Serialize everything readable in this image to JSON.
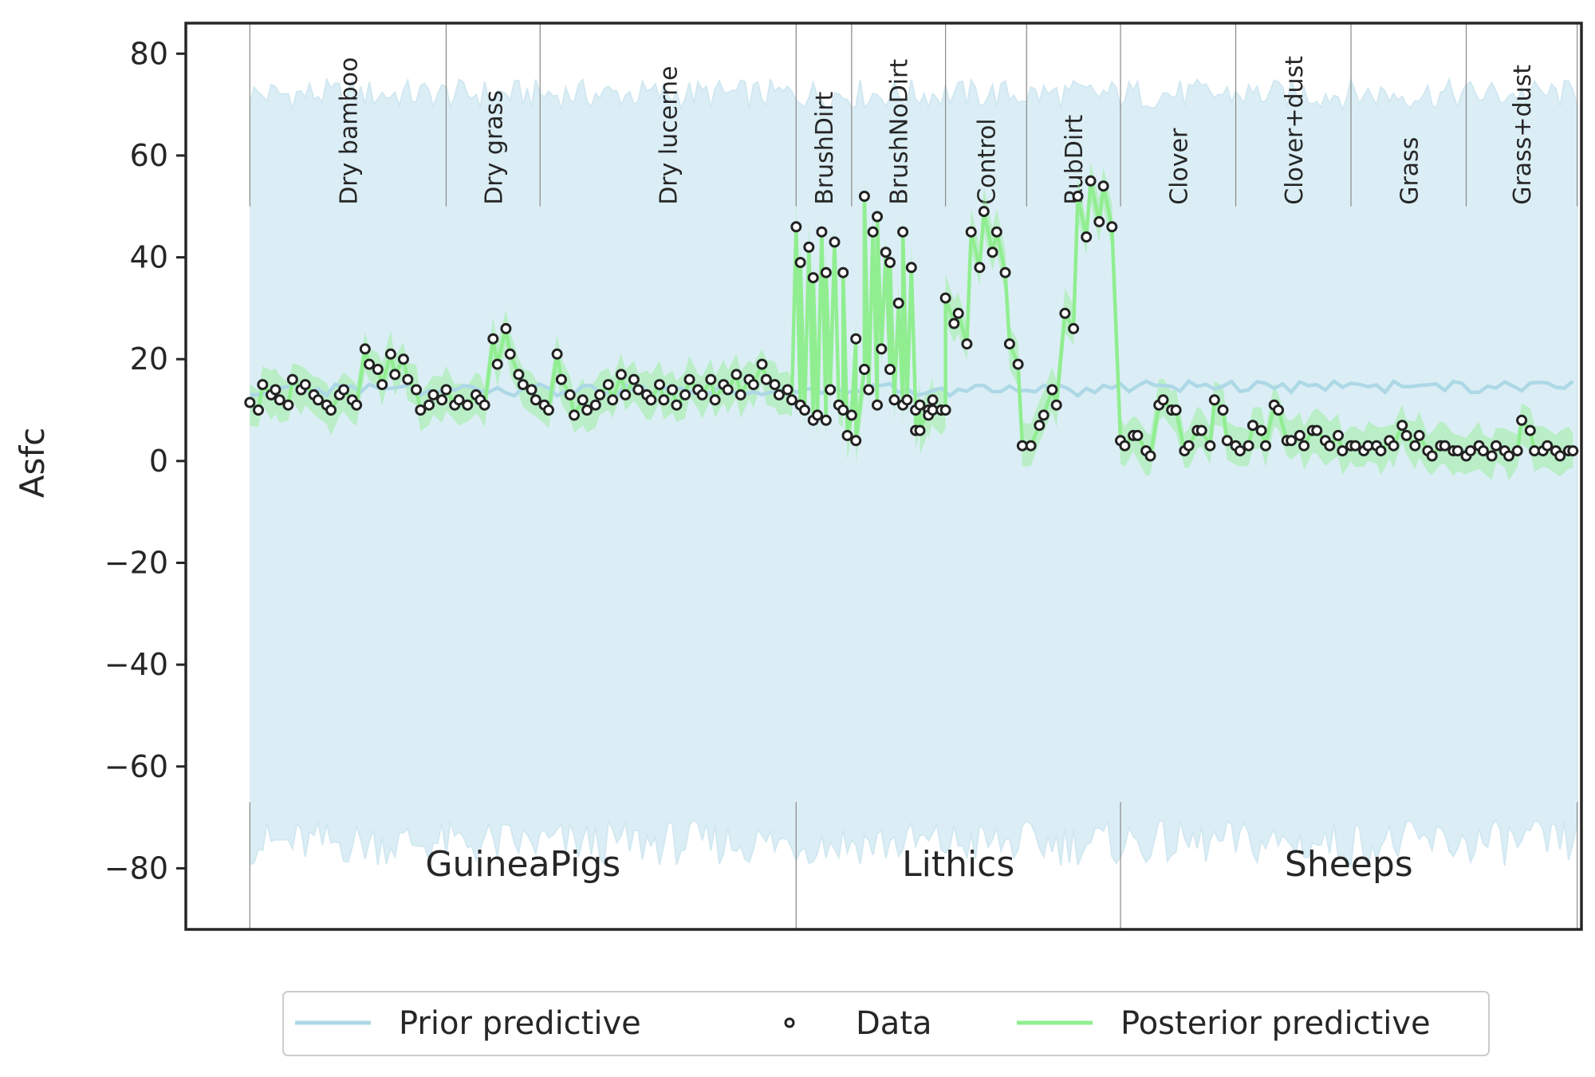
{
  "chart_data": {
    "type": "line",
    "ylabel": "Asfc",
    "xlabel": "",
    "ylim": [
      -92,
      86
    ],
    "yticks": [
      80,
      60,
      40,
      20,
      0,
      -20,
      -40,
      -60,
      -80
    ],
    "ytick_labels": [
      "80",
      "60",
      "40",
      "20",
      "0",
      "−20",
      "−40",
      "−60",
      "−80"
    ],
    "x_range": [
      -15,
      312
    ],
    "colors": {
      "prior_line": "#add8e6",
      "prior_band": "#dbeef5",
      "posterior": "#90ee90",
      "data_marker": "#222222"
    },
    "treatments": [
      {
        "name": "Dry bamboo",
        "start": 0,
        "end": 46
      },
      {
        "name": "Dry grass",
        "start": 46,
        "end": 68
      },
      {
        "name": "Dry lucerne",
        "start": 68,
        "end": 128
      },
      {
        "name": "BrushDirt",
        "start": 128,
        "end": 141
      },
      {
        "name": "BrushNoDirt",
        "start": 141,
        "end": 163
      },
      {
        "name": "Control",
        "start": 163,
        "end": 182
      },
      {
        "name": "RubDirt",
        "start": 182,
        "end": 204
      },
      {
        "name": "Clover",
        "start": 204,
        "end": 231
      },
      {
        "name": "Clover+dust",
        "start": 231,
        "end": 258
      },
      {
        "name": "Grass",
        "start": 258,
        "end": 285
      },
      {
        "name": "Grass+dust",
        "start": 285,
        "end": 311
      }
    ],
    "datasets": [
      {
        "name": "GuineaPigs",
        "start": 0,
        "end": 128
      },
      {
        "name": "Lithics",
        "start": 128,
        "end": 204
      },
      {
        "name": "Sheeps",
        "start": 204,
        "end": 311
      }
    ],
    "series": [
      {
        "name": "Prior predictive",
        "kind": "line+band",
        "mean": 14,
        "band": [
          -75,
          72
        ]
      },
      {
        "name": "Data",
        "kind": "scatter"
      },
      {
        "name": "Posterior predictive",
        "kind": "line+band",
        "band_halfwidth": 4
      }
    ],
    "data_points": [
      [
        0,
        11.5
      ],
      [
        2,
        10
      ],
      [
        3,
        15
      ],
      [
        5,
        13
      ],
      [
        6,
        14
      ],
      [
        7,
        12
      ],
      [
        9,
        11
      ],
      [
        10,
        16
      ],
      [
        12,
        14
      ],
      [
        13,
        15
      ],
      [
        15,
        13
      ],
      [
        16,
        12
      ],
      [
        18,
        11
      ],
      [
        19,
        10
      ],
      [
        21,
        13
      ],
      [
        22,
        14
      ],
      [
        24,
        12
      ],
      [
        25,
        11
      ],
      [
        27,
        22
      ],
      [
        28,
        19
      ],
      [
        30,
        18
      ],
      [
        31,
        15
      ],
      [
        33,
        21
      ],
      [
        34,
        17
      ],
      [
        36,
        20
      ],
      [
        37,
        16
      ],
      [
        39,
        14
      ],
      [
        40,
        10
      ],
      [
        42,
        11
      ],
      [
        43,
        13
      ],
      [
        45,
        12
      ],
      [
        46,
        14
      ],
      [
        48,
        11
      ],
      [
        49,
        12
      ],
      [
        51,
        11
      ],
      [
        53,
        13
      ],
      [
        54,
        12
      ],
      [
        55,
        11
      ],
      [
        57,
        24
      ],
      [
        58,
        19
      ],
      [
        60,
        26
      ],
      [
        61,
        21
      ],
      [
        63,
        17
      ],
      [
        64,
        15
      ],
      [
        66,
        14
      ],
      [
        67,
        12
      ],
      [
        69,
        11
      ],
      [
        70,
        10
      ],
      [
        72,
        21
      ],
      [
        73,
        16
      ],
      [
        75,
        13
      ],
      [
        76,
        9
      ],
      [
        78,
        12
      ],
      [
        79,
        10
      ],
      [
        81,
        11
      ],
      [
        82,
        13
      ],
      [
        84,
        15
      ],
      [
        85,
        12
      ],
      [
        87,
        17
      ],
      [
        88,
        13
      ],
      [
        90,
        16
      ],
      [
        91,
        14
      ],
      [
        93,
        13
      ],
      [
        94,
        12
      ],
      [
        96,
        15
      ],
      [
        97,
        12
      ],
      [
        99,
        14
      ],
      [
        100,
        11
      ],
      [
        102,
        13
      ],
      [
        103,
        16
      ],
      [
        105,
        14
      ],
      [
        106,
        13
      ],
      [
        108,
        16
      ],
      [
        109,
        12
      ],
      [
        111,
        15
      ],
      [
        112,
        14
      ],
      [
        114,
        17
      ],
      [
        115,
        13
      ],
      [
        117,
        16
      ],
      [
        118,
        15
      ],
      [
        120,
        19
      ],
      [
        121,
        16
      ],
      [
        123,
        15
      ],
      [
        124,
        13
      ],
      [
        126,
        14
      ],
      [
        127,
        12
      ],
      [
        129,
        11
      ],
      [
        130,
        10
      ],
      [
        132,
        8
      ],
      [
        133,
        9
      ],
      [
        135,
        8
      ],
      [
        136,
        14
      ],
      [
        138,
        11
      ],
      [
        139,
        10
      ],
      [
        141,
        9
      ],
      [
        142,
        24
      ],
      [
        144,
        18
      ],
      [
        145,
        14
      ],
      [
        147,
        11
      ],
      [
        148,
        22
      ],
      [
        150,
        18
      ],
      [
        151,
        12
      ],
      [
        153,
        11
      ],
      [
        154,
        12
      ],
      [
        156,
        10
      ],
      [
        157,
        11
      ],
      [
        159,
        10
      ],
      [
        160,
        12
      ],
      [
        162,
        10
      ],
      [
        163,
        10
      ],
      [
        128,
        46
      ],
      [
        129,
        39
      ],
      [
        131,
        42
      ],
      [
        132,
        36
      ],
      [
        134,
        45
      ],
      [
        135,
        37
      ],
      [
        137,
        43
      ],
      [
        139,
        37
      ],
      [
        140,
        5
      ],
      [
        142,
        4
      ],
      [
        144,
        52
      ],
      [
        146,
        45
      ],
      [
        147,
        48
      ],
      [
        149,
        41
      ],
      [
        150,
        39
      ],
      [
        152,
        31
      ],
      [
        153,
        45
      ],
      [
        155,
        38
      ],
      [
        156,
        6
      ],
      [
        157,
        6
      ],
      [
        159,
        9
      ],
      [
        160,
        10
      ],
      [
        163,
        32
      ],
      [
        165,
        27
      ],
      [
        166,
        29
      ],
      [
        168,
        23
      ],
      [
        169,
        45
      ],
      [
        171,
        38
      ],
      [
        172,
        49
      ],
      [
        174,
        41
      ],
      [
        175,
        45
      ],
      [
        177,
        37
      ],
      [
        178,
        23
      ],
      [
        180,
        19
      ],
      [
        181,
        3
      ],
      [
        183,
        3
      ],
      [
        185,
        7
      ],
      [
        186,
        9
      ],
      [
        188,
        14
      ],
      [
        189,
        11
      ],
      [
        191,
        29
      ],
      [
        193,
        26
      ],
      [
        194,
        52
      ],
      [
        196,
        44
      ],
      [
        197,
        55
      ],
      [
        199,
        47
      ],
      [
        200,
        54
      ],
      [
        202,
        46
      ],
      [
        204,
        4
      ],
      [
        205,
        3
      ],
      [
        207,
        5
      ],
      [
        208,
        5
      ],
      [
        210,
        2
      ],
      [
        211,
        1
      ],
      [
        213,
        11
      ],
      [
        214,
        12
      ],
      [
        216,
        10
      ],
      [
        217,
        10
      ],
      [
        219,
        2
      ],
      [
        220,
        3
      ],
      [
        222,
        6
      ],
      [
        223,
        6
      ],
      [
        225,
        3
      ],
      [
        226,
        12
      ],
      [
        228,
        10
      ],
      [
        229,
        4
      ],
      [
        231,
        3
      ],
      [
        232,
        2
      ],
      [
        234,
        3
      ],
      [
        235,
        7
      ],
      [
        237,
        6
      ],
      [
        238,
        3
      ],
      [
        240,
        11
      ],
      [
        241,
        10
      ],
      [
        243,
        4
      ],
      [
        244,
        4
      ],
      [
        246,
        5
      ],
      [
        247,
        3
      ],
      [
        249,
        6
      ],
      [
        250,
        6
      ],
      [
        252,
        4
      ],
      [
        253,
        3
      ],
      [
        255,
        5
      ],
      [
        256,
        2
      ],
      [
        258,
        3
      ],
      [
        259,
        3
      ],
      [
        261,
        2
      ],
      [
        262,
        3
      ],
      [
        264,
        3
      ],
      [
        265,
        2
      ],
      [
        267,
        4
      ],
      [
        268,
        3
      ],
      [
        270,
        7
      ],
      [
        271,
        5
      ],
      [
        273,
        3
      ],
      [
        274,
        5
      ],
      [
        276,
        2
      ],
      [
        277,
        1
      ],
      [
        279,
        3
      ],
      [
        280,
        3
      ],
      [
        282,
        2
      ],
      [
        283,
        2
      ],
      [
        285,
        1
      ],
      [
        286,
        2
      ],
      [
        288,
        3
      ],
      [
        289,
        2
      ],
      [
        291,
        1
      ],
      [
        292,
        3
      ],
      [
        294,
        2
      ],
      [
        295,
        1
      ],
      [
        297,
        2
      ],
      [
        298,
        8
      ],
      [
        300,
        6
      ],
      [
        301,
        2
      ],
      [
        303,
        2
      ],
      [
        304,
        3
      ],
      [
        306,
        2
      ],
      [
        307,
        1
      ],
      [
        309,
        2
      ],
      [
        310,
        2
      ]
    ]
  },
  "legend": {
    "items": [
      {
        "label": "Prior predictive",
        "symbol": "line",
        "color": "#add8e6"
      },
      {
        "label": "Data",
        "symbol": "circle",
        "color": "#222222"
      },
      {
        "label": "Posterior predictive",
        "symbol": "line",
        "color": "#90ee90"
      }
    ]
  }
}
